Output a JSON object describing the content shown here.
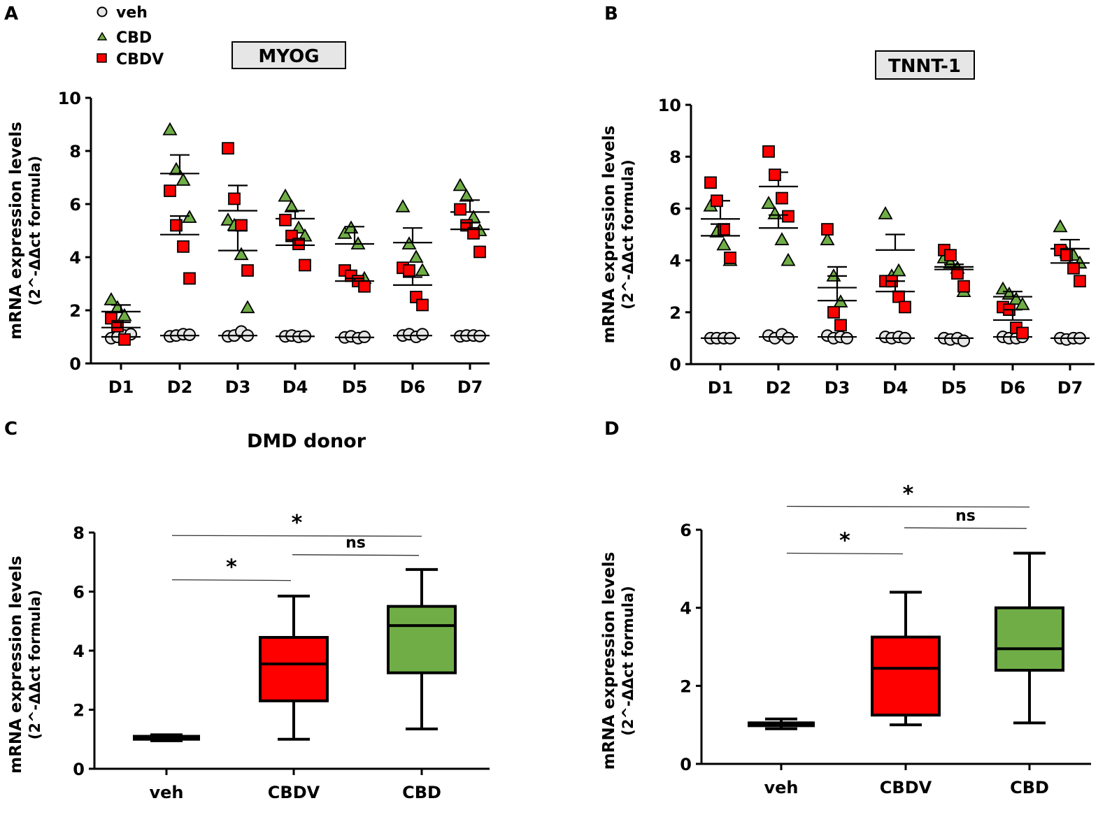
{
  "legend": {
    "items": [
      {
        "label": "veh",
        "marker": "circle",
        "color": "#e6e6e6"
      },
      {
        "label": "CBD",
        "marker": "triangle",
        "color": "#70ad47"
      },
      {
        "label": "CBDV",
        "marker": "square",
        "color": "#ff0000"
      }
    ]
  },
  "colors": {
    "veh": "#e6e6e6",
    "CBD": "#70ad47",
    "CBDV": "#ff0000",
    "axis": "#000000",
    "label_box": "#e6e6e6"
  },
  "panels": {
    "A": {
      "letter": "A",
      "title": "MYOG"
    },
    "B": {
      "letter": "B",
      "title": "TNNT-1"
    },
    "C": {
      "letter": "C",
      "title": "DMD donor"
    },
    "D": {
      "letter": "D",
      "title": ""
    }
  },
  "chart_data": [
    {
      "id": "A",
      "type": "scatter",
      "title": "MYOG",
      "xlabel": "",
      "ylabel": "mRNA expression levels",
      "ylabel2": "(2^-ΔΔct formula)",
      "ylim": [
        0,
        10
      ],
      "yticks": [
        "0",
        "2",
        "4",
        "6",
        "8",
        "10"
      ],
      "categories": [
        "D1",
        "D2",
        "D3",
        "D4",
        "D5",
        "D6",
        "D7"
      ],
      "series": [
        {
          "name": "veh",
          "marker": "circle",
          "points": [
            [
              0.95,
              1.0,
              1.05,
              1.1
            ],
            [
              1.02,
              1.05,
              1.1,
              1.08
            ],
            [
              1.02,
              1.05,
              1.2,
              1.05
            ],
            [
              1.02,
              1.05,
              1.0,
              1.03
            ],
            [
              0.98,
              1.02,
              0.95,
              1.0
            ],
            [
              1.05,
              1.1,
              1.0,
              1.1
            ],
            [
              1.02,
              1.05,
              1.05,
              1.03
            ]
          ],
          "mean": [
            1.0,
            1.05,
            1.05,
            1.02,
            0.98,
            1.05,
            1.05
          ],
          "sem_upper": [
            1.0,
            1.05,
            1.05,
            1.02,
            0.98,
            1.05,
            1.05
          ]
        },
        {
          "name": "CBD",
          "marker": "triangle",
          "points": [
            [
              2.4,
              2.1,
              1.8
            ],
            [
              8.8,
              7.3,
              6.9,
              5.5
            ],
            [
              5.4,
              5.2,
              4.1,
              2.1
            ],
            [
              6.3,
              5.9,
              5.1,
              4.8
            ],
            [
              4.9,
              5.1,
              4.5,
              3.2
            ],
            [
              5.9,
              4.5,
              4.0,
              3.5
            ],
            [
              6.7,
              6.3,
              5.5,
              5.0
            ]
          ],
          "mean": [
            1.95,
            7.15,
            5.75,
            5.45,
            4.5,
            4.55,
            5.7
          ],
          "sem_upper": [
            2.2,
            7.85,
            6.7,
            5.75,
            5.15,
            5.1,
            6.15
          ]
        },
        {
          "name": "CBDV",
          "marker": "square",
          "points": [
            [
              1.7,
              1.4,
              0.9
            ],
            [
              6.5,
              5.2,
              4.4,
              3.2
            ],
            [
              8.1,
              6.2,
              5.2,
              3.5
            ],
            [
              5.4,
              4.8,
              4.5,
              3.7
            ],
            [
              3.5,
              3.3,
              3.1,
              2.9
            ],
            [
              3.6,
              3.5,
              2.5,
              2.2
            ],
            [
              5.8,
              5.2,
              4.9,
              4.2
            ]
          ],
          "mean": [
            1.35,
            4.85,
            4.25,
            4.45,
            3.1,
            2.95,
            5.05
          ],
          "sem_upper": [
            1.55,
            5.55,
            5.0,
            4.65,
            3.2,
            3.25,
            5.3
          ]
        }
      ]
    },
    {
      "id": "B",
      "type": "scatter",
      "title": "TNNT-1",
      "xlabel": "",
      "ylabel": "mRNA expression levels",
      "ylabel2": "(2^-ΔΔct formula)",
      "ylim": [
        0,
        10
      ],
      "yticks": [
        "0",
        "2",
        "4",
        "6",
        "8",
        "10"
      ],
      "categories": [
        "D1",
        "D2",
        "D3",
        "D4",
        "D5",
        "D6",
        "D7"
      ],
      "series": [
        {
          "name": "veh",
          "marker": "circle",
          "points": [
            [
              1.0,
              1.0,
              1.0,
              1.0
            ],
            [
              1.1,
              1.0,
              1.15,
              1.0
            ],
            [
              1.1,
              1.0,
              1.05,
              1.0
            ],
            [
              1.05,
              1.0,
              1.05,
              1.0
            ],
            [
              1.0,
              0.95,
              1.0,
              0.9
            ],
            [
              1.05,
              1.0,
              1.0,
              1.05
            ],
            [
              1.0,
              0.95,
              1.0,
              1.0
            ]
          ],
          "mean": [
            1.0,
            1.05,
            1.05,
            1.0,
            1.0,
            1.05,
            1.0
          ],
          "sem_upper": [
            1.0,
            1.05,
            1.05,
            1.0,
            1.0,
            1.05,
            1.0
          ]
        },
        {
          "name": "CBD",
          "marker": "triangle",
          "points": [
            [
              6.1,
              5.1,
              4.6,
              4.0
            ],
            [
              6.2,
              5.8,
              4.8,
              4.0
            ],
            [
              4.8,
              3.4,
              2.4
            ],
            [
              5.8,
              3.4,
              3.6
            ],
            [
              4.1,
              3.9,
              3.7,
              2.8
            ],
            [
              2.9,
              2.7,
              2.5,
              2.3
            ],
            [
              5.3,
              4.3,
              4.2,
              3.9
            ]
          ],
          "mean": [
            5.6,
            6.85,
            2.95,
            4.4,
            3.75,
            2.6,
            4.45
          ],
          "sem_upper": [
            6.3,
            7.4,
            3.75,
            5.0,
            3.85,
            2.8,
            4.8
          ]
        },
        {
          "name": "CBDV",
          "marker": "square",
          "points": [
            [
              7.0,
              6.3,
              5.2,
              4.1
            ],
            [
              8.2,
              7.3,
              6.4,
              5.7
            ],
            [
              5.2,
              2.0,
              1.5
            ],
            [
              3.2,
              3.2,
              2.6,
              2.2
            ],
            [
              4.4,
              4.2,
              3.5,
              3.0
            ],
            [
              2.2,
              2.1,
              1.4,
              1.2
            ],
            [
              4.4,
              4.2,
              3.7,
              3.2
            ]
          ],
          "mean": [
            4.95,
            5.25,
            2.45,
            2.8,
            3.65,
            1.7,
            3.9
          ],
          "sem_upper": [
            5.4,
            5.75,
            3.4,
            3.2,
            3.75,
            2.1,
            4.45
          ]
        }
      ]
    },
    {
      "id": "C",
      "type": "box",
      "title": "DMD donor",
      "xlabel": "",
      "ylabel": "mRNA expression levels",
      "ylabel2": "(2^-ΔΔct formula)",
      "ylim": [
        0,
        8
      ],
      "yticks": [
        "0",
        "2",
        "4",
        "6",
        "8"
      ],
      "categories": [
        "veh",
        "CBDV",
        "CBD"
      ],
      "boxes": [
        {
          "name": "veh",
          "min": 0.95,
          "q1": 1.0,
          "median": 1.05,
          "q3": 1.1,
          "max": 1.15,
          "color": "#000000"
        },
        {
          "name": "CBDV",
          "min": 1.0,
          "q1": 2.3,
          "median": 3.55,
          "q3": 4.45,
          "max": 5.85,
          "color": "#ff0000"
        },
        {
          "name": "CBD",
          "min": 1.35,
          "q1": 3.25,
          "median": 4.85,
          "q3": 5.5,
          "max": 6.75,
          "color": "#70ad47"
        }
      ],
      "annotations": [
        {
          "from": "veh",
          "to": "CBD",
          "label": "*",
          "level": 7.9
        },
        {
          "from": "CBDV",
          "to": "CBD",
          "label": "ns",
          "level": 7.25
        },
        {
          "from": "veh",
          "to": "CBDV",
          "label": "*",
          "level": 6.4
        }
      ]
    },
    {
      "id": "D",
      "type": "box",
      "title": "",
      "xlabel": "",
      "ylabel": "mRNA expression levels",
      "ylabel2": "(2^-ΔΔct formula)",
      "ylim": [
        0,
        6
      ],
      "yticks": [
        "0",
        "2",
        "4",
        "6"
      ],
      "categories": [
        "veh",
        "CBDV",
        "CBD"
      ],
      "boxes": [
        {
          "name": "veh",
          "min": 0.9,
          "q1": 1.0,
          "median": 1.05,
          "q3": 1.05,
          "max": 1.15,
          "color": "#000000"
        },
        {
          "name": "CBDV",
          "min": 1.0,
          "q1": 1.25,
          "median": 2.45,
          "q3": 3.25,
          "max": 4.4,
          "color": "#ff0000"
        },
        {
          "name": "CBD",
          "min": 1.05,
          "q1": 2.4,
          "median": 2.95,
          "q3": 4.0,
          "max": 5.4,
          "color": "#70ad47"
        }
      ],
      "annotations": [
        {
          "from": "veh",
          "to": "CBD",
          "label": "*",
          "level": 6.6
        },
        {
          "from": "CBDV",
          "to": "CBD",
          "label": "ns",
          "level": 6.05
        },
        {
          "from": "veh",
          "to": "CBDV",
          "label": "*",
          "level": 5.4
        }
      ]
    }
  ]
}
